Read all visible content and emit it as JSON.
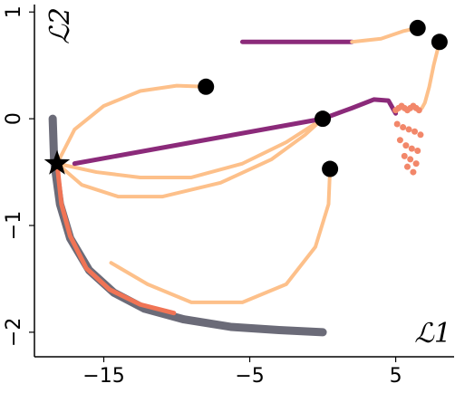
{
  "chart_data": {
    "type": "line",
    "xlabel": "ℒ1",
    "ylabel": "ℒ2",
    "xlim": [
      -19.75,
      9
    ],
    "ylim": [
      -2.23,
      1.07
    ],
    "xticks": [
      {
        "value": -15,
        "label": "−15"
      },
      {
        "value": -5,
        "label": "−5"
      },
      5
    ],
    "yticks": [
      1,
      0,
      {
        "value": -1,
        "label": "−1"
      },
      {
        "value": -2,
        "label": "−2"
      }
    ],
    "series": [
      {
        "color": "#6b6b78",
        "x": [
          -18.5,
          -18.4,
          -18.0,
          -17.3,
          -16.0,
          -14.3,
          -12.2,
          -9.5,
          -6.3,
          -3.0,
          0.0
        ],
        "y": [
          0.0,
          -0.4,
          -0.8,
          -1.12,
          -1.42,
          -1.63,
          -1.78,
          -1.88,
          -1.95,
          -1.98,
          -2.0
        ]
      },
      {
        "color": "#f07455",
        "x": [
          -18.2,
          -17.9,
          -17.3,
          -16.2,
          -14.6,
          -12.5,
          -10.2
        ],
        "y": [
          -0.42,
          -0.8,
          -1.1,
          -1.4,
          -1.6,
          -1.74,
          -1.82
        ]
      },
      {
        "color": "#fdc08a",
        "x": [
          -18.2,
          -17.0,
          -15.0,
          -12.5,
          -10.0,
          -8.0
        ],
        "y": [
          -0.42,
          -0.1,
          0.12,
          0.26,
          0.31,
          0.3
        ]
      },
      {
        "color": "#fdc08a",
        "x": [
          -18.2,
          -16.5,
          -14.0,
          -11.0,
          -7.0,
          -3.5,
          -1.2,
          0.0
        ],
        "y": [
          -0.42,
          -0.62,
          -0.73,
          -0.73,
          -0.6,
          -0.38,
          -0.15,
          0.0
        ]
      },
      {
        "color": "#fdc08a",
        "x": [
          0.0,
          -2.5,
          -5.5,
          -9.0,
          -12.5,
          -15.5,
          -18.2
        ],
        "y": [
          0.0,
          -0.22,
          -0.42,
          -0.55,
          -0.55,
          -0.5,
          -0.42
        ]
      },
      {
        "color": "#fdc08a",
        "x": [
          0.5,
          0.4,
          -0.5,
          -2.5,
          -5.5,
          -9.0,
          -12.0,
          -14.5
        ],
        "y": [
          -0.47,
          -0.8,
          -1.2,
          -1.55,
          -1.72,
          -1.72,
          -1.55,
          -1.35
        ]
      },
      {
        "color": "#8b2a7a",
        "x": [
          -17.0,
          -8.5,
          0.0,
          2.0,
          3.5,
          4.5,
          5.0
        ],
        "y": [
          -0.42,
          -0.21,
          0.0,
          0.1,
          0.18,
          0.17,
          0.05
        ]
      },
      {
        "color": "#8b2a7a",
        "x": [
          -5.5,
          2.0
        ],
        "y": [
          0.72,
          0.72
        ]
      },
      {
        "color": "#fdc08a",
        "x": [
          2.0,
          4.0,
          5.5,
          6.5
        ],
        "y": [
          0.72,
          0.75,
          0.82,
          0.85
        ]
      },
      {
        "color": "#fdc08a",
        "x": [
          8.0,
          7.6,
          7.3,
          7.0,
          6.8
        ],
        "y": [
          0.72,
          0.5,
          0.3,
          0.15,
          0.1
        ]
      }
    ],
    "scatter": {
      "color": "#f2876a",
      "x": [
        5.0,
        5.2,
        5.4,
        5.6,
        5.8,
        6.0,
        6.2,
        6.4,
        6.6,
        5.1,
        5.5,
        5.9,
        6.3,
        6.7,
        5.3,
        5.7,
        6.1,
        6.5,
        5.6,
        6.0,
        6.4,
        5.8,
        6.2
      ],
      "y": [
        0.08,
        0.1,
        0.12,
        0.1,
        0.08,
        0.1,
        0.12,
        0.1,
        0.08,
        -0.05,
        -0.08,
        -0.1,
        -0.12,
        -0.15,
        -0.2,
        -0.25,
        -0.28,
        -0.3,
        -0.35,
        -0.38,
        -0.42,
        -0.45,
        -0.5
      ]
    },
    "markers": {
      "color": "#000000",
      "x": [
        -8.0,
        6.5,
        8.0,
        0.0,
        0.5
      ],
      "y": [
        0.3,
        0.85,
        0.72,
        0.0,
        -0.47
      ]
    },
    "star": {
      "color": "#000000",
      "x": -18.2,
      "y": -0.42
    }
  }
}
